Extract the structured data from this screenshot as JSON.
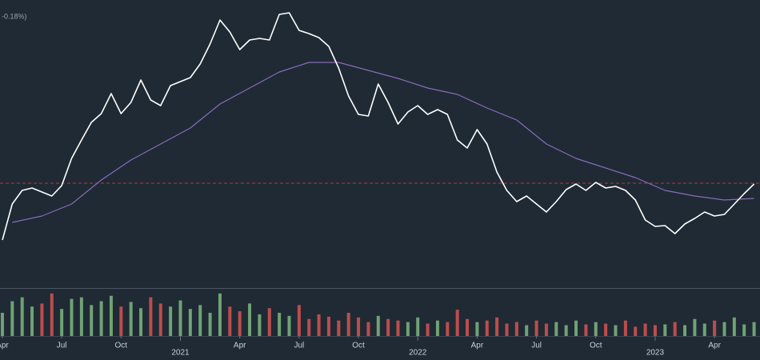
{
  "chart_data": {
    "type": "line",
    "annotation": "-0.18%)",
    "xlim": [
      2.88,
      41.3
    ],
    "xticks": [
      {
        "value": 3,
        "label": "Apr"
      },
      {
        "value": 6,
        "label": "Jul"
      },
      {
        "value": 9,
        "label": "Oct"
      },
      {
        "value": 12,
        "label": "2021"
      },
      {
        "value": 15,
        "label": "Apr"
      },
      {
        "value": 18,
        "label": "Jul"
      },
      {
        "value": 21,
        "label": "Oct"
      },
      {
        "value": 24,
        "label": "2022"
      },
      {
        "value": 27,
        "label": "Apr"
      },
      {
        "value": 30,
        "label": "Jul"
      },
      {
        "value": 33,
        "label": "Oct"
      },
      {
        "value": 36,
        "label": "2023"
      },
      {
        "value": 39,
        "label": "Apr"
      }
    ],
    "ylim": [
      0,
      360
    ],
    "reference_line": {
      "value": 131,
      "color": "#c0392b"
    },
    "series": [
      {
        "color": "#ffffff",
        "x": [
          3,
          3.5,
          4,
          4.5,
          5,
          5.5,
          6,
          6.5,
          7,
          7.5,
          8,
          8.5,
          9,
          9.5,
          10,
          10.5,
          11,
          11.5,
          12,
          12.5,
          13,
          13.5,
          14,
          14.5,
          15,
          15.5,
          16,
          16.5,
          17,
          17.5,
          18,
          18.5,
          19,
          19.5,
          20,
          20.5,
          21,
          21.5,
          22,
          22.5,
          23,
          23.5,
          24,
          24.5,
          25,
          25.5,
          26,
          26.5,
          27,
          27.5,
          28,
          28.5,
          29,
          29.5,
          30,
          30.5,
          31,
          31.5,
          32,
          32.5,
          33,
          33.5,
          34,
          34.5,
          35,
          35.5,
          36,
          36.5,
          37,
          37.5,
          38,
          38.5,
          39,
          39.5,
          40,
          40.5,
          41
        ],
        "values": [
          60,
          105,
          122,
          125,
          120,
          115,
          128,
          162,
          185,
          207,
          218,
          243,
          218,
          232,
          260,
          235,
          228,
          253,
          258,
          263,
          280,
          305,
          335,
          320,
          298,
          310,
          312,
          310,
          342,
          344,
          322,
          318,
          313,
          302,
          275,
          240,
          217,
          215,
          255,
          232,
          205,
          220,
          228,
          217,
          223,
          217,
          185,
          175,
          198,
          180,
          145,
          122,
          108,
          115,
          105,
          95,
          108,
          123,
          130,
          122,
          132,
          125,
          127,
          122,
          110,
          85,
          77,
          78,
          68,
          80,
          87,
          95,
          90,
          92,
          105,
          118,
          130
        ]
      },
      {
        "color": "#8b6bb8",
        "x": [
          3.5,
          5,
          6.5,
          8,
          9.5,
          11,
          12.5,
          14,
          15.5,
          17,
          18.5,
          20,
          21.5,
          23,
          24.5,
          26,
          27.5,
          29,
          30.5,
          32,
          33.5,
          35,
          36.5,
          38,
          39.5,
          41
        ],
        "values": [
          82,
          90,
          105,
          135,
          160,
          180,
          200,
          230,
          250,
          270,
          282,
          282,
          272,
          262,
          250,
          242,
          225,
          210,
          180,
          162,
          150,
          138,
          122,
          115,
          110,
          112
        ]
      }
    ],
    "volume": {
      "ylim": [
        0,
        60
      ],
      "up_color": "#7fb77e",
      "down_color": "#d9534f",
      "x": [
        3,
        3.5,
        4,
        4.5,
        5,
        5.5,
        6,
        6.5,
        7,
        7.5,
        8,
        8.5,
        9,
        9.5,
        10,
        10.5,
        11,
        11.5,
        12,
        12.5,
        13,
        13.5,
        14,
        14.5,
        15,
        15.5,
        16,
        16.5,
        17,
        17.5,
        18,
        18.5,
        19,
        19.5,
        20,
        20.5,
        21,
        21.5,
        22,
        22.5,
        23,
        23.5,
        24,
        24.5,
        25,
        25.5,
        26,
        26.5,
        27,
        27.5,
        28,
        28.5,
        29,
        29.5,
        30,
        30.5,
        31,
        31.5,
        32,
        32.5,
        33,
        33.5,
        34,
        34.5,
        35,
        35.5,
        36,
        36.5,
        37,
        37.5,
        38,
        38.5,
        39,
        39.5,
        40,
        40.5,
        41
      ],
      "values": [
        30,
        45,
        50,
        38,
        42,
        55,
        35,
        48,
        50,
        40,
        45,
        52,
        38,
        44,
        36,
        50,
        42,
        38,
        46,
        35,
        40,
        30,
        55,
        38,
        32,
        42,
        28,
        36,
        30,
        26,
        40,
        22,
        28,
        25,
        20,
        30,
        24,
        18,
        26,
        22,
        20,
        18,
        24,
        16,
        20,
        18,
        34,
        22,
        18,
        20,
        24,
        16,
        18,
        14,
        20,
        16,
        18,
        14,
        20,
        15,
        18,
        16,
        14,
        20,
        12,
        16,
        14,
        15,
        18,
        14,
        22,
        16,
        20,
        18,
        24,
        15,
        18
      ]
    }
  }
}
